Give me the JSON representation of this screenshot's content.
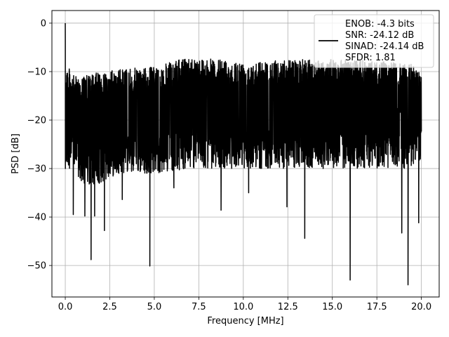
{
  "chart_data": {
    "type": "line",
    "title": "",
    "xlabel": "Frequency [MHz]",
    "ylabel": "PSD [dB]",
    "xlim": [
      -0.75,
      21.0
    ],
    "ylim": [
      -56.5,
      2.6
    ],
    "xticks": [
      0.0,
      2.5,
      5.0,
      7.5,
      10.0,
      12.5,
      15.0,
      17.5,
      20.0
    ],
    "xtick_labels": [
      "0.0",
      "2.5",
      "5.0",
      "7.5",
      "10.0",
      "12.5",
      "15.0",
      "17.5",
      "20.0"
    ],
    "yticks": [
      0,
      -10,
      -20,
      -30,
      -40,
      -50
    ],
    "ytick_labels": [
      "0",
      "−10",
      "−20",
      "−30",
      "−40",
      "−50"
    ],
    "grid": true,
    "legend_position": "top-right",
    "series": [
      {
        "name": "ENOB: -4.3 bits\nSNR: -24.12 dB\nSINAD: -24.14 dB\nSFDR: 1.81",
        "color": "#000000",
        "description_of_trace": "dense noise-floor PSD between approx -8 and -30 dB with a peak near 0 dB at DC and deep dips",
        "peak": {
          "x": 0.0,
          "y": 0.0
        },
        "band_envelope": {
          "x": [
            0.0,
            0.5,
            1.0,
            2.0,
            3.0,
            5.0,
            7.0,
            10.0,
            13.0,
            16.0,
            18.0,
            19.5,
            20.0
          ],
          "upper": [
            -8,
            -11,
            -11,
            -10,
            -9.5,
            -9,
            -7,
            -8,
            -7.5,
            -7.5,
            -8,
            -8.5,
            -10
          ],
          "lower": [
            -30,
            -30,
            -34,
            -33,
            -31,
            -31,
            -30,
            -30,
            -30,
            -30,
            -30,
            -30,
            -28
          ]
        },
        "deep_dips": [
          {
            "x": 1.45,
            "y": -48.8
          },
          {
            "x": 4.75,
            "y": -50.1
          },
          {
            "x": 8.75,
            "y": -38.6
          },
          {
            "x": 12.45,
            "y": -37.9
          },
          {
            "x": 13.45,
            "y": -44.4
          },
          {
            "x": 16.0,
            "y": -53.0
          },
          {
            "x": 19.25,
            "y": -54.0
          },
          {
            "x": 18.9,
            "y": -43.3
          },
          {
            "x": 19.85,
            "y": -41.2
          },
          {
            "x": 0.45,
            "y": -39.5
          },
          {
            "x": 1.1,
            "y": -39.8
          },
          {
            "x": 1.65,
            "y": -39.8
          },
          {
            "x": 2.2,
            "y": -42.8
          },
          {
            "x": 3.2,
            "y": -36.4
          },
          {
            "x": 6.1,
            "y": -34.0
          },
          {
            "x": 10.3,
            "y": -35.0
          }
        ]
      }
    ]
  }
}
